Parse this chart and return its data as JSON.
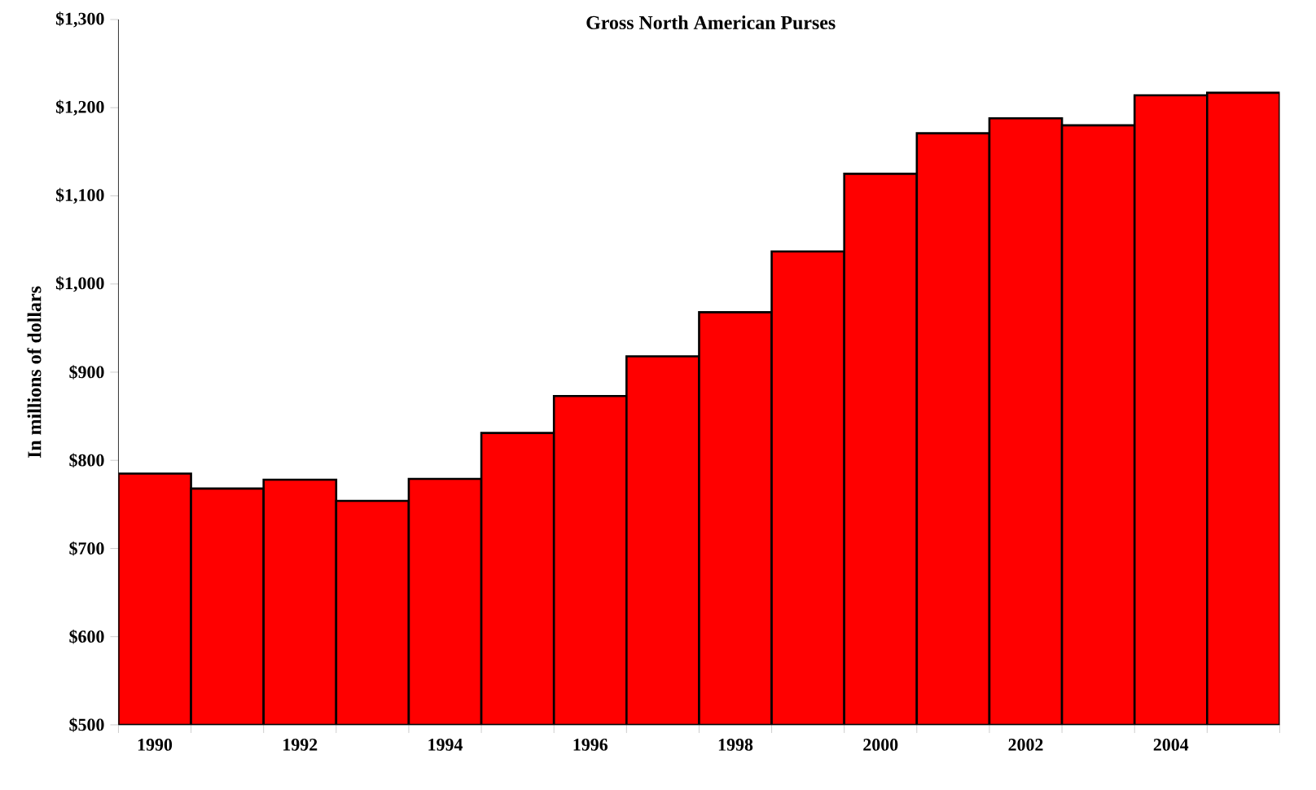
{
  "chart_data": {
    "type": "bar",
    "title": "Gross North American Purses",
    "ylabel": "In millions of dollars",
    "categories": [
      "1990",
      null,
      "1992",
      null,
      "1994",
      null,
      "1996",
      null,
      "1998",
      null,
      "2000",
      null,
      "2002",
      null,
      "2004",
      null
    ],
    "values": [
      785,
      768,
      778,
      754,
      779,
      831,
      873,
      918,
      968,
      1037,
      1125,
      1171,
      1188,
      1180,
      1214,
      1217
    ],
    "color": "#ff0000",
    "ylim": [
      500,
      1300
    ],
    "yticks": [
      {
        "value": 500,
        "label": "$500"
      },
      {
        "value": 600,
        "label": "$600"
      },
      {
        "value": 700,
        "label": "$700"
      },
      {
        "value": 800,
        "label": "$800"
      },
      {
        "value": 900,
        "label": "$900"
      },
      {
        "value": 1000,
        "label": "$1,000"
      },
      {
        "value": 1100,
        "label": "$1,100"
      },
      {
        "value": 1200,
        "label": "$1,200"
      },
      {
        "value": 1300,
        "label": "$1,300"
      }
    ],
    "grid": false
  }
}
